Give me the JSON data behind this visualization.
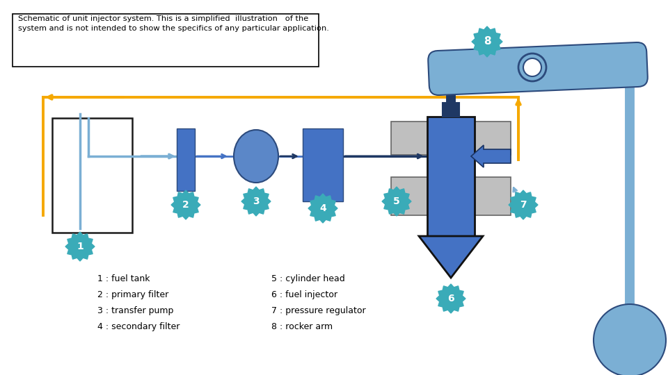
{
  "bg_color": "#ffffff",
  "title_box_text": "Schematic of unit injector system. This is a simplified  illustration   of the\nsystem and is not intended to show the specifics of any particular application.",
  "legend_col1": [
    "1 : fuel tank",
    "2 : primary filter",
    "3 : transfer pump",
    "4 : secondary filter"
  ],
  "legend_col2": [
    "5 : cylinder head",
    "6 : fuel injector",
    "7 : pressure regulator",
    "8 : rocker arm"
  ],
  "blue": "#4472c4",
  "blue_mid": "#5b87c8",
  "blue_light": "#7bafd4",
  "teal": "#3aabb8",
  "gray": "#bfbfbf",
  "orange": "#f5a800",
  "dark_navy": "#1f3864",
  "black": "#1a1a1a"
}
